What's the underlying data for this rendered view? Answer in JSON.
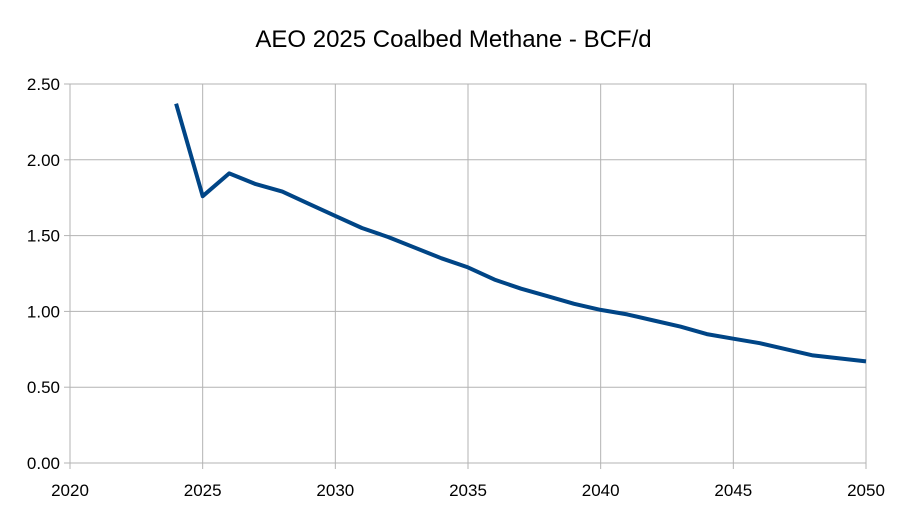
{
  "chart_data": {
    "type": "line",
    "title": "AEO 2025 Coalbed Methane - BCF/d",
    "xlabel": "",
    "ylabel": "",
    "xlim": [
      2020,
      2050
    ],
    "ylim": [
      0,
      2.5
    ],
    "x_ticks": [
      "2020",
      "2025",
      "2030",
      "2035",
      "2040",
      "2045",
      "2050"
    ],
    "y_ticks": [
      "0.00",
      "0.50",
      "1.00",
      "1.50",
      "2.00",
      "2.50"
    ],
    "grid": true,
    "legend": "none",
    "series": [
      {
        "color": "#004586",
        "x": [
          2024,
          2025,
          2026,
          2027,
          2028,
          2029,
          2030,
          2031,
          2032,
          2033,
          2034,
          2035,
          2036,
          2037,
          2038,
          2039,
          2040,
          2041,
          2042,
          2043,
          2044,
          2045,
          2046,
          2047,
          2048,
          2049,
          2050
        ],
        "values": [
          2.37,
          1.76,
          1.91,
          1.84,
          1.79,
          1.71,
          1.63,
          1.55,
          1.49,
          1.42,
          1.35,
          1.29,
          1.21,
          1.15,
          1.1,
          1.05,
          1.01,
          0.98,
          0.94,
          0.9,
          0.85,
          0.82,
          0.79,
          0.75,
          0.71,
          0.69,
          0.67
        ]
      }
    ]
  }
}
